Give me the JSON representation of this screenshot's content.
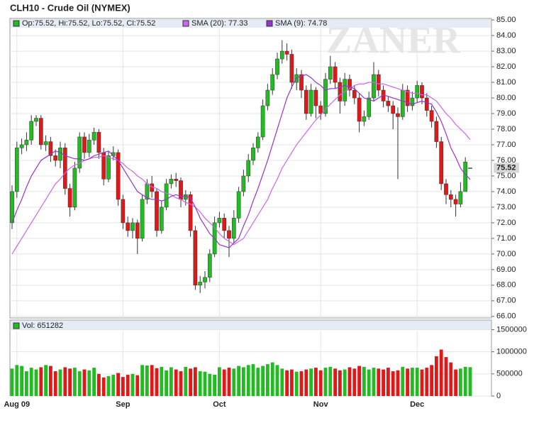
{
  "chart_data": [
    {
      "type": "candlestick",
      "title": "CLH10 - Crude Oil (NYMEX)",
      "ohlc_label": "Op:75.52, Hi:75.52, Lo:75.52, Cl:75.52",
      "watermark": "ZANER",
      "up_color": "#22bb22",
      "down_color": "#e01818",
      "open": [
        72.0,
        74.0,
        76.8,
        77.0,
        77.3,
        78.5,
        78.7,
        77.0,
        77.2,
        76.3,
        76.0,
        76.8,
        74.2,
        73.0,
        75.5,
        77.5,
        76.5,
        77.3,
        77.8,
        76.5,
        74.8,
        76.3,
        76.5,
        73.5,
        72.0,
        71.5,
        72.0,
        71.0,
        73.5,
        74.5,
        74.0,
        71.5,
        73.0,
        74.5,
        74.8,
        74.7,
        73.5,
        73.8,
        71.5,
        68.0,
        68.2,
        68.5,
        70.0,
        72.0,
        72.3,
        71.5,
        71.0,
        72.3,
        74.0,
        75.0,
        76.0,
        76.8,
        77.5,
        79.5,
        80.5,
        81.5,
        82.5,
        83.0,
        82.8,
        81.0,
        81.5,
        80.5,
        79.0,
        80.5,
        79.5,
        79.0,
        81.2,
        82.0,
        81.0,
        79.8,
        81.2,
        80.5,
        80.0,
        78.5,
        78.8,
        80.0,
        81.5,
        80.5,
        79.8,
        79.5,
        79.0,
        78.8,
        80.5,
        79.5,
        80.0,
        80.8,
        80.0,
        79.2,
        78.5,
        77.2,
        74.5,
        73.8,
        73.5,
        73.2,
        74.0,
        75.52
      ],
      "high": [
        74.4,
        77.2,
        77.4,
        77.8,
        78.9,
        78.9,
        78.9,
        77.6,
        77.5,
        76.7,
        77.2,
        77.1,
        74.5,
        75.9,
        77.8,
        77.8,
        77.7,
        78.1,
        78.0,
        76.8,
        76.6,
        76.9,
        76.7,
        73.8,
        72.4,
        72.3,
        72.2,
        73.8,
        74.8,
        75.0,
        74.2,
        73.4,
        74.8,
        75.1,
        75.2,
        74.9,
        74.1,
        74.0,
        71.8,
        68.6,
        68.9,
        70.3,
        72.4,
        72.7,
        72.6,
        71.8,
        72.8,
        74.3,
        75.4,
        76.4,
        77.1,
        77.8,
        79.9,
        80.9,
        81.9,
        82.9,
        83.7,
        83.5,
        83.1,
        81.9,
        81.8,
        80.8,
        80.9,
        80.7,
        79.8,
        81.6,
        82.7,
        82.3,
        81.3,
        81.6,
        81.5,
        80.8,
        80.3,
        79.2,
        80.4,
        82.3,
        81.8,
        80.8,
        80.1,
        79.8,
        79.4,
        80.9,
        80.8,
        80.4,
        81.1,
        81.0,
        80.3,
        79.5,
        78.8,
        77.5,
        74.8,
        74.1,
        73.8,
        74.6,
        76.2,
        75.52
      ],
      "low": [
        71.6,
        73.6,
        76.4,
        76.6,
        77.0,
        78.2,
        76.7,
        76.6,
        75.9,
        75.6,
        75.5,
        73.8,
        72.4,
        72.8,
        75.2,
        76.1,
        76.2,
        77.0,
        76.1,
        74.4,
        74.6,
        76.0,
        73.1,
        71.6,
        71.1,
        71.0,
        70.0,
        70.8,
        73.2,
        73.6,
        71.1,
        71.3,
        72.8,
        74.2,
        74.3,
        73.0,
        73.1,
        71.1,
        67.7,
        67.5,
        67.8,
        68.2,
        69.8,
        71.7,
        71.0,
        69.8,
        70.7,
        72.0,
        73.7,
        74.6,
        75.7,
        76.5,
        77.3,
        79.2,
        80.2,
        81.2,
        82.2,
        82.4,
        80.6,
        80.5,
        80.0,
        78.6,
        78.8,
        78.7,
        78.6,
        78.8,
        80.9,
        80.6,
        79.0,
        79.5,
        80.1,
        79.6,
        77.8,
        78.2,
        78.6,
        79.8,
        80.1,
        79.4,
        79.1,
        78.0,
        74.8,
        78.6,
        79.1,
        79.2,
        79.7,
        79.6,
        78.8,
        78.1,
        76.8,
        74.1,
        73.2,
        73.0,
        72.4,
        73.0,
        74.0,
        75.52
      ],
      "close": [
        74.0,
        76.8,
        77.0,
        77.3,
        78.5,
        78.7,
        77.0,
        77.2,
        76.3,
        76.0,
        76.8,
        74.2,
        73.0,
        75.5,
        77.5,
        76.5,
        77.3,
        77.8,
        76.5,
        74.8,
        76.3,
        76.5,
        73.5,
        72.0,
        71.5,
        72.0,
        71.0,
        73.5,
        74.5,
        74.0,
        71.5,
        73.0,
        74.5,
        74.8,
        74.7,
        73.5,
        73.8,
        71.5,
        68.0,
        68.2,
        68.5,
        70.0,
        72.0,
        72.3,
        71.5,
        71.0,
        72.3,
        74.0,
        75.0,
        76.0,
        76.8,
        77.5,
        79.5,
        80.5,
        81.5,
        82.5,
        83.0,
        82.8,
        81.0,
        81.5,
        80.5,
        79.0,
        80.5,
        79.5,
        79.0,
        81.2,
        82.0,
        81.0,
        79.8,
        81.2,
        80.5,
        80.0,
        78.5,
        78.8,
        80.0,
        81.5,
        80.5,
        79.8,
        79.5,
        79.0,
        78.8,
        80.5,
        79.5,
        80.0,
        80.8,
        80.0,
        79.2,
        78.5,
        77.2,
        74.5,
        73.8,
        73.5,
        73.2,
        74.0,
        75.9,
        75.52
      ],
      "series": [
        {
          "name": "SMA (20): 77.33",
          "color": "#cc66ee",
          "values": [
            70.0,
            70.5,
            71.0,
            71.5,
            72.0,
            72.5,
            73.0,
            73.5,
            74.0,
            74.5,
            74.8,
            75.2,
            75.5,
            75.7,
            75.8,
            76.0,
            76.1,
            76.2,
            76.2,
            76.3,
            76.2,
            76.1,
            76.0,
            75.8,
            75.5,
            75.3,
            75.0,
            74.8,
            74.5,
            74.3,
            74.2,
            74.0,
            73.9,
            73.8,
            73.6,
            73.5,
            73.3,
            73.2,
            73.0,
            72.7,
            72.3,
            72.0,
            71.7,
            71.3,
            71.0,
            70.8,
            70.6,
            70.8,
            71.0,
            71.5,
            72.0,
            72.5,
            73.0,
            73.5,
            74.2,
            74.8,
            75.5,
            76.0,
            76.5,
            77.0,
            77.4,
            77.8,
            78.2,
            78.6,
            78.9,
            79.3,
            79.6,
            79.9,
            80.2,
            80.4,
            80.6,
            80.8,
            80.9,
            80.9,
            81.0,
            81.0,
            80.9,
            80.9,
            80.8,
            80.7,
            80.6,
            80.5,
            80.4,
            80.3,
            80.3,
            80.2,
            80.2,
            80.0,
            79.8,
            79.4,
            79.0,
            78.7,
            78.3,
            78.0,
            77.7,
            77.33
          ]
        },
        {
          "name": "SMA (9): 74.78",
          "color": "#9933cc",
          "values": [
            72.0,
            72.8,
            73.5,
            74.3,
            75.0,
            75.5,
            76.0,
            76.2,
            76.4,
            76.6,
            76.5,
            76.3,
            76.2,
            76.1,
            76.1,
            76.0,
            76.1,
            76.3,
            76.4,
            76.5,
            76.6,
            76.3,
            76.0,
            75.5,
            75.0,
            74.5,
            74.0,
            73.8,
            73.6,
            73.5,
            73.5,
            73.4,
            73.5,
            73.7,
            73.8,
            73.7,
            73.7,
            73.6,
            73.0,
            72.3,
            71.8,
            71.3,
            71.0,
            70.6,
            70.5,
            70.4,
            70.7,
            71.0,
            71.8,
            72.5,
            73.4,
            74.2,
            75.1,
            76.0,
            77.0,
            78.0,
            79.0,
            80.0,
            80.7,
            81.3,
            81.4,
            81.5,
            81.3,
            81.0,
            80.8,
            80.5,
            80.6,
            80.6,
            80.7,
            80.8,
            80.7,
            80.6,
            80.3,
            80.0,
            79.9,
            79.8,
            80.0,
            80.2,
            80.1,
            80.0,
            79.9,
            79.8,
            79.7,
            79.6,
            79.7,
            79.8,
            79.7,
            79.6,
            79.1,
            78.5,
            77.7,
            76.8,
            76.2,
            75.5,
            75.1,
            74.78
          ]
        }
      ],
      "ylim": [
        65.9,
        85.05
      ],
      "yticks": [
        {
          "value": 66,
          "label": "66.00"
        },
        {
          "value": 67,
          "label": "67.00"
        },
        {
          "value": 68,
          "label": "68.00"
        },
        {
          "value": 69,
          "label": "69.00"
        },
        {
          "value": 70,
          "label": "70.00"
        },
        {
          "value": 71,
          "label": "71.00"
        },
        {
          "value": 72,
          "label": "72.00"
        },
        {
          "value": 73,
          "label": "73.00"
        },
        {
          "value": 74,
          "label": "74.00"
        },
        {
          "value": 75,
          "label": "75.00"
        },
        {
          "value": 76,
          "label": "76.00"
        },
        {
          "value": 77,
          "label": "77.00"
        },
        {
          "value": 78,
          "label": "78.00"
        },
        {
          "value": 79,
          "label": "79.00"
        },
        {
          "value": 80,
          "label": "80.00"
        },
        {
          "value": 81,
          "label": "81.00"
        },
        {
          "value": 82,
          "label": "82.00"
        },
        {
          "value": 83,
          "label": "83.00"
        },
        {
          "value": 84,
          "label": "84.00"
        },
        {
          "value": 85,
          "label": "85.00"
        }
      ],
      "grid": true
    },
    {
      "type": "volume",
      "label": "Vol: 651282",
      "categories": [
        null,
        "Aug 09",
        null,
        null,
        null,
        null,
        null,
        null,
        null,
        null,
        null,
        null,
        null,
        null,
        null,
        null,
        null,
        null,
        null,
        null,
        null,
        null,
        null,
        "Sep",
        null,
        null,
        null,
        null,
        null,
        null,
        null,
        null,
        null,
        null,
        null,
        null,
        null,
        null,
        null,
        null,
        null,
        null,
        null,
        "Oct",
        null,
        null,
        null,
        null,
        null,
        null,
        null,
        null,
        null,
        null,
        null,
        null,
        null,
        null,
        null,
        null,
        null,
        null,
        null,
        null,
        "Nov",
        null,
        null,
        null,
        null,
        null,
        null,
        null,
        null,
        null,
        null,
        null,
        null,
        null,
        null,
        null,
        null,
        null,
        null,
        null,
        "Dec",
        null,
        null,
        null,
        null,
        null,
        null,
        null,
        null,
        null,
        null,
        null
      ],
      "values": [
        620000,
        700000,
        680000,
        560000,
        640000,
        600000,
        650000,
        700000,
        680000,
        560000,
        600000,
        650000,
        620000,
        640000,
        560000,
        600000,
        580000,
        640000,
        500000,
        420000,
        450000,
        480000,
        520000,
        430000,
        480000,
        500000,
        470000,
        700000,
        690000,
        700000,
        630000,
        660000,
        580000,
        650000,
        600000,
        560000,
        660000,
        620000,
        650000,
        560000,
        550000,
        500000,
        480000,
        650000,
        600000,
        640000,
        620000,
        680000,
        650000,
        700000,
        720000,
        640000,
        680000,
        720000,
        760000,
        700000,
        620000,
        580000,
        600000,
        550000,
        560000,
        600000,
        620000,
        640000,
        580000,
        640000,
        660000,
        620000,
        580000,
        600000,
        650000,
        620000,
        680000,
        660000,
        600000,
        640000,
        620000,
        600000,
        640000,
        560000,
        580000,
        660000,
        620000,
        640000,
        640000,
        600000,
        640000,
        700000,
        900000,
        1050000,
        880000,
        760000,
        600000,
        620000,
        660000,
        651282
      ],
      "ylim": [
        0,
        1700000
      ],
      "yticks": [
        0,
        500000,
        1000000,
        1500000
      ],
      "grid": true
    }
  ]
}
